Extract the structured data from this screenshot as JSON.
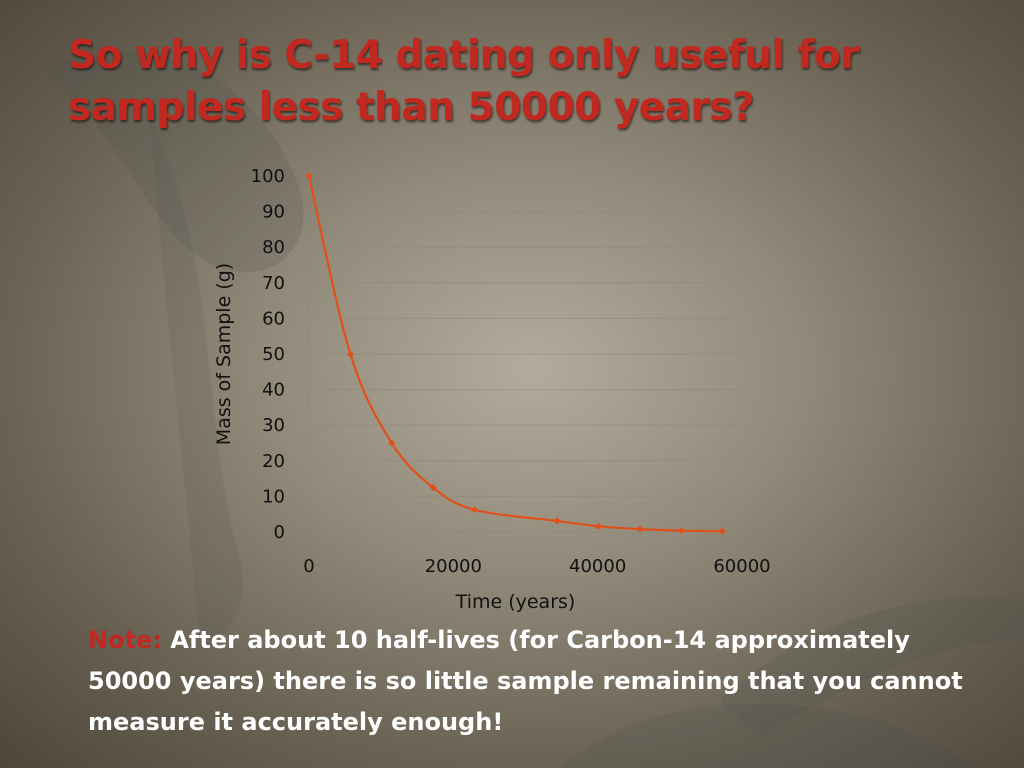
{
  "slide": {
    "title": "So why is C-14 dating only useful for samples less than 50000 years?",
    "note_label": "Note:",
    "note_text": "After about 10 half-lives (for Carbon-14 approximately 50000 years) there is so little sample remaining that you cannot measure it accurately enough!"
  },
  "colors": {
    "title": "#c02820",
    "note_label": "#c02820",
    "series_line": "#e0501a",
    "text": "#ffffff"
  },
  "chart_data": {
    "type": "scatter",
    "xlabel": "Time (years)",
    "ylabel": "Mass of Sample (g)",
    "xlim": [
      0,
      60000
    ],
    "ylim": [
      0,
      100
    ],
    "x_ticks": [
      0,
      20000,
      40000,
      60000
    ],
    "y_ticks": [
      0,
      10,
      20,
      30,
      40,
      50,
      60,
      70,
      80,
      90,
      100
    ],
    "grid": true,
    "legend": "none",
    "series": [
      {
        "x": [
          0,
          5730,
          11460,
          17190,
          22920,
          34380,
          40110,
          45840,
          51570,
          57300
        ],
        "y": [
          100,
          50,
          25,
          12.5,
          6.25,
          3.1,
          1.6,
          0.8,
          0.4,
          0.2
        ]
      }
    ]
  }
}
